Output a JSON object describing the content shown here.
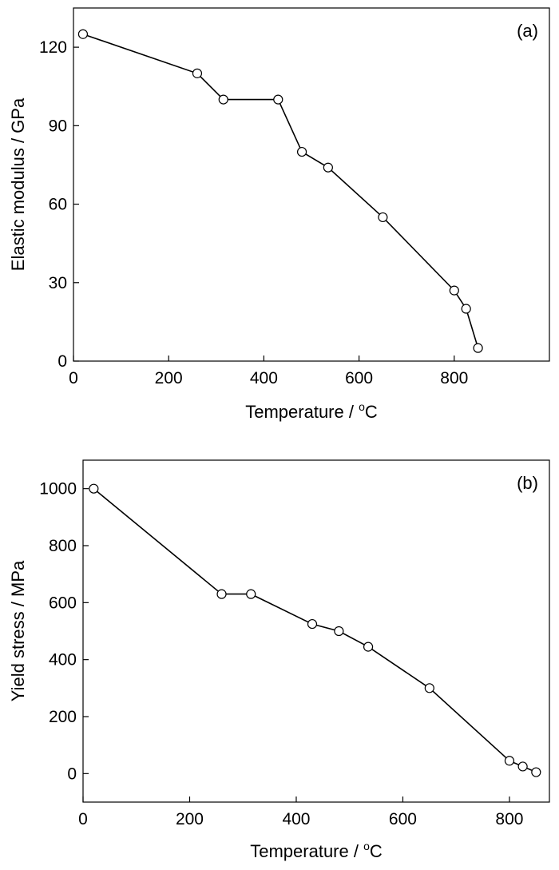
{
  "chart_data": [
    {
      "panel": "(a)",
      "type": "line",
      "xlabel_main": "Temperature / ",
      "xlabel_degree": "o",
      "xlabel_unit": "C",
      "ylabel": "Elastic modulus / GPa",
      "xlim": [
        0,
        1000
      ],
      "ylim": [
        0,
        135
      ],
      "xticks": [
        0,
        200,
        400,
        600,
        800
      ],
      "yticks": [
        0,
        30,
        60,
        90,
        120
      ],
      "grid": false,
      "marker": "open-circle",
      "line_color": "#000000",
      "x": [
        20,
        260,
        315,
        430,
        480,
        535,
        650,
        800,
        825,
        850
      ],
      "y": [
        125,
        110,
        100,
        100,
        80,
        74,
        55,
        27,
        20,
        5
      ]
    },
    {
      "panel": "(b)",
      "type": "line",
      "xlabel_main": "Temperature / ",
      "xlabel_degree": "o",
      "xlabel_unit": "C",
      "ylabel": "Yield stress / MPa",
      "xlim": [
        0,
        875
      ],
      "ylim": [
        -100,
        1100
      ],
      "xticks": [
        0,
        200,
        400,
        600,
        800
      ],
      "yticks": [
        0,
        200,
        400,
        600,
        800,
        1000
      ],
      "grid": false,
      "marker": "open-circle",
      "line_color": "#000000",
      "x": [
        20,
        260,
        315,
        430,
        480,
        535,
        650,
        800,
        825,
        850
      ],
      "y": [
        1000,
        630,
        630,
        525,
        500,
        445,
        300,
        45,
        25,
        5
      ]
    }
  ]
}
